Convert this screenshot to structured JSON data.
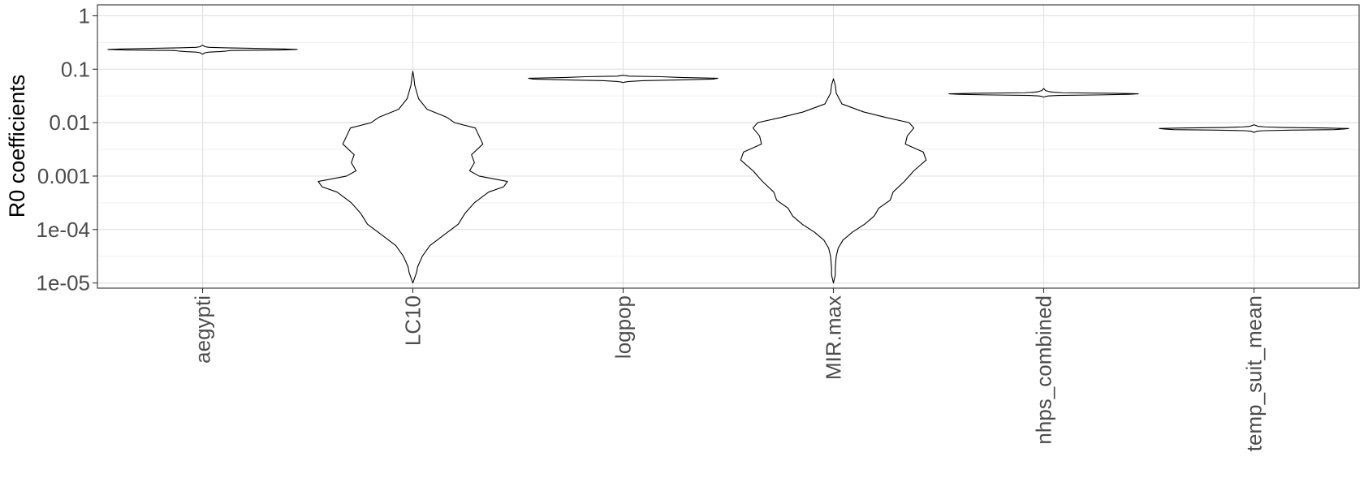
{
  "chart_data": {
    "type": "violin",
    "title": "",
    "xlabel": "",
    "ylabel": "R0 coefficients",
    "y_scale": "log10",
    "ylim": [
      8e-06,
      1.6
    ],
    "grid": true,
    "y_ticks": [
      {
        "value": 1,
        "label": "1"
      },
      {
        "value": 0.1,
        "label": "0.1"
      },
      {
        "value": 0.01,
        "label": "0.01"
      },
      {
        "value": 0.001,
        "label": "0.001"
      },
      {
        "value": 0.0001,
        "label": "1e-04"
      },
      {
        "value": 1e-05,
        "label": "1e-05"
      }
    ],
    "categories": [
      "aegypti",
      "LC10",
      "logpop",
      "MIR.max",
      "nhps_combined",
      "temp_suit_mean"
    ],
    "series": [
      {
        "name": "aegypti",
        "profile": [
          [
            -0.717,
            0.0
          ],
          [
            -0.7,
            0.02
          ],
          [
            -0.69,
            0.03
          ],
          [
            -0.68,
            0.07
          ],
          [
            -0.67,
            0.18
          ],
          [
            -0.66,
            0.25
          ],
          [
            -0.65,
            0.3
          ],
          [
            -0.64,
            0.82
          ],
          [
            -0.63,
            1.0
          ],
          [
            -0.62,
            0.85
          ],
          [
            -0.61,
            0.55
          ],
          [
            -0.6,
            0.25
          ],
          [
            -0.59,
            0.07
          ],
          [
            -0.58,
            0.03
          ],
          [
            -0.57,
            0.02
          ],
          [
            -0.552,
            0.0
          ]
        ]
      },
      {
        "name": "LC10",
        "profile": [
          [
            -5.0,
            0.0
          ],
          [
            -4.9,
            0.02
          ],
          [
            -4.8,
            0.04
          ],
          [
            -4.7,
            0.05
          ],
          [
            -4.5,
            0.1
          ],
          [
            -4.3,
            0.18
          ],
          [
            -4.1,
            0.33
          ],
          [
            -3.9,
            0.48
          ],
          [
            -3.7,
            0.55
          ],
          [
            -3.5,
            0.65
          ],
          [
            -3.3,
            0.8
          ],
          [
            -3.2,
            0.96
          ],
          [
            -3.1,
            1.0
          ],
          [
            -3.0,
            0.7
          ],
          [
            -2.9,
            0.6
          ],
          [
            -2.75,
            0.65
          ],
          [
            -2.6,
            0.62
          ],
          [
            -2.4,
            0.74
          ],
          [
            -2.25,
            0.7
          ],
          [
            -2.1,
            0.66
          ],
          [
            -2.0,
            0.44
          ],
          [
            -1.9,
            0.36
          ],
          [
            -1.75,
            0.15
          ],
          [
            -1.55,
            0.06
          ],
          [
            -1.3,
            0.02
          ],
          [
            -1.15,
            0.01
          ],
          [
            -1.04,
            0.0
          ]
        ]
      },
      {
        "name": "logpop",
        "profile": [
          [
            -1.25,
            0.0
          ],
          [
            -1.24,
            0.02
          ],
          [
            -1.23,
            0.06
          ],
          [
            -1.215,
            0.2
          ],
          [
            -1.2,
            0.6
          ],
          [
            -1.185,
            0.95
          ],
          [
            -1.17,
            1.0
          ],
          [
            -1.155,
            0.6
          ],
          [
            -1.14,
            0.4
          ],
          [
            -1.13,
            0.06
          ],
          [
            -1.12,
            0.03
          ],
          [
            -1.115,
            0.0
          ]
        ]
      },
      {
        "name": "MIR.max",
        "profile": [
          [
            -5.0,
            0.0
          ],
          [
            -4.85,
            0.02
          ],
          [
            -4.7,
            0.02
          ],
          [
            -4.5,
            0.03
          ],
          [
            -4.35,
            0.05
          ],
          [
            -4.2,
            0.1
          ],
          [
            -4.05,
            0.2
          ],
          [
            -3.9,
            0.33
          ],
          [
            -3.75,
            0.43
          ],
          [
            -3.6,
            0.48
          ],
          [
            -3.45,
            0.6
          ],
          [
            -3.3,
            0.63
          ],
          [
            -3.1,
            0.75
          ],
          [
            -2.9,
            0.85
          ],
          [
            -2.7,
            0.98
          ],
          [
            -2.55,
            0.95
          ],
          [
            -2.4,
            0.76
          ],
          [
            -2.25,
            0.78
          ],
          [
            -2.1,
            0.85
          ],
          [
            -2.0,
            0.8
          ],
          [
            -1.9,
            0.55
          ],
          [
            -1.8,
            0.32
          ],
          [
            -1.65,
            0.09
          ],
          [
            -1.45,
            0.03
          ],
          [
            -1.3,
            0.02
          ],
          [
            -1.18,
            0.0
          ]
        ]
      },
      {
        "name": "nhps_combined",
        "profile": [
          [
            -1.52,
            0.0
          ],
          [
            -1.51,
            0.02
          ],
          [
            -1.5,
            0.05
          ],
          [
            -1.49,
            0.15
          ],
          [
            -1.48,
            0.6
          ],
          [
            -1.47,
            0.9
          ],
          [
            -1.46,
            1.0
          ],
          [
            -1.45,
            0.75
          ],
          [
            -1.44,
            0.2
          ],
          [
            -1.43,
            0.1
          ],
          [
            -1.42,
            0.06
          ],
          [
            -1.41,
            0.04
          ],
          [
            -1.4,
            0.02
          ],
          [
            -1.36,
            0.0
          ]
        ]
      },
      {
        "name": "temp_suit_mean",
        "profile": [
          [
            -2.18,
            0.0
          ],
          [
            -2.17,
            0.02
          ],
          [
            -2.16,
            0.03
          ],
          [
            -2.15,
            0.1
          ],
          [
            -2.14,
            0.4
          ],
          [
            -2.13,
            0.85
          ],
          [
            -2.12,
            0.95
          ],
          [
            -2.11,
            1.0
          ],
          [
            -2.1,
            0.75
          ],
          [
            -2.09,
            0.3
          ],
          [
            -2.08,
            0.12
          ],
          [
            -2.07,
            0.05
          ],
          [
            -2.06,
            0.03
          ],
          [
            -2.04,
            0.0
          ]
        ]
      }
    ]
  }
}
